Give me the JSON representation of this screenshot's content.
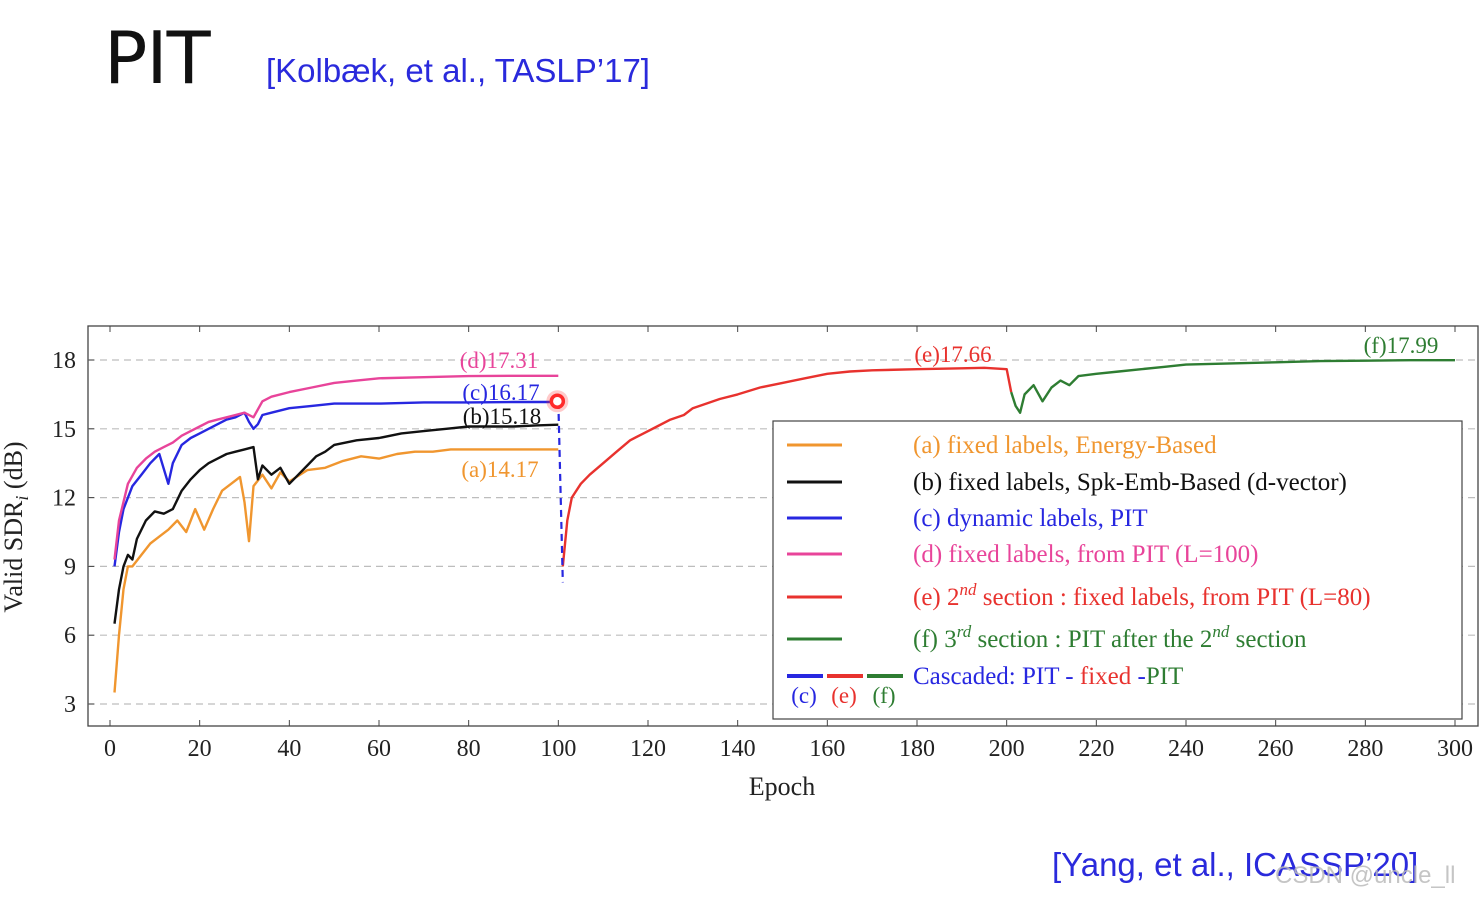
{
  "slide": {
    "title": "PIT",
    "citation_top": "[Kolbæk, et al., TASLP’17]",
    "citation_bottom": "[Yang, et al., ICASSP’20]",
    "watermark": "CSDN @uncle_ll"
  },
  "chart_data": {
    "type": "line",
    "xlabel": "Epoch",
    "ylabel": "Valid SDR",
    "ylabel_subscript": "i",
    "ylabel_unit": "(dB)",
    "xlim": [
      0,
      300
    ],
    "ylim": [
      2,
      19.5
    ],
    "xticks": [
      0,
      20,
      40,
      60,
      80,
      100,
      120,
      140,
      160,
      180,
      200,
      220,
      240,
      260,
      280,
      300
    ],
    "yticks": [
      3,
      6,
      9,
      12,
      15,
      18
    ],
    "grid": "horizontal-dashed",
    "legend_position": "bottom-right",
    "series": [
      {
        "name": "(a) fixed labels, Energy-Based",
        "color": "#f0962f",
        "points": [
          [
            1,
            3.5
          ],
          [
            2,
            6
          ],
          [
            3,
            8
          ],
          [
            4,
            9
          ],
          [
            5,
            9
          ],
          [
            7,
            9.5
          ],
          [
            9,
            10
          ],
          [
            11,
            10.3
          ],
          [
            13,
            10.6
          ],
          [
            15,
            11
          ],
          [
            17,
            10.5
          ],
          [
            19,
            11.5
          ],
          [
            21,
            10.6
          ],
          [
            23,
            11.5
          ],
          [
            25,
            12.3
          ],
          [
            27,
            12.6
          ],
          [
            29,
            12.9
          ],
          [
            30,
            11.8
          ],
          [
            31,
            10.1
          ],
          [
            32,
            12.5
          ],
          [
            34,
            13
          ],
          [
            36,
            12.4
          ],
          [
            38,
            13.1
          ],
          [
            40,
            12.7
          ],
          [
            44,
            13.2
          ],
          [
            48,
            13.3
          ],
          [
            52,
            13.6
          ],
          [
            56,
            13.8
          ],
          [
            60,
            13.7
          ],
          [
            64,
            13.9
          ],
          [
            68,
            14
          ],
          [
            72,
            14
          ],
          [
            76,
            14.1
          ],
          [
            80,
            14.1
          ],
          [
            85,
            14.1
          ],
          [
            90,
            14.1
          ],
          [
            95,
            14.1
          ],
          [
            100,
            14.1
          ]
        ],
        "label": "(a)14.17"
      },
      {
        "name": "(b) fixed labels, Spk-Emb-Based (d-vector)",
        "color": "#111111",
        "points": [
          [
            1,
            6.5
          ],
          [
            2,
            8
          ],
          [
            3,
            9
          ],
          [
            4,
            9.5
          ],
          [
            5,
            9.3
          ],
          [
            6,
            10.2
          ],
          [
            8,
            11
          ],
          [
            10,
            11.4
          ],
          [
            12,
            11.3
          ],
          [
            14,
            11.5
          ],
          [
            16,
            12.3
          ],
          [
            18,
            12.8
          ],
          [
            20,
            13.2
          ],
          [
            22,
            13.5
          ],
          [
            24,
            13.7
          ],
          [
            26,
            13.9
          ],
          [
            28,
            14
          ],
          [
            30,
            14.1
          ],
          [
            32,
            14.2
          ],
          [
            33,
            12.8
          ],
          [
            34,
            13.4
          ],
          [
            36,
            13
          ],
          [
            38,
            13.3
          ],
          [
            40,
            12.6
          ],
          [
            42,
            13
          ],
          [
            44,
            13.4
          ],
          [
            46,
            13.8
          ],
          [
            48,
            14
          ],
          [
            50,
            14.3
          ],
          [
            55,
            14.5
          ],
          [
            60,
            14.6
          ],
          [
            65,
            14.8
          ],
          [
            70,
            14.9
          ],
          [
            75,
            15
          ],
          [
            80,
            15.1
          ],
          [
            85,
            15.1
          ],
          [
            90,
            15.1
          ],
          [
            95,
            15.15
          ],
          [
            100,
            15.18
          ]
        ],
        "label": "(b)15.18"
      },
      {
        "name": "(c) dynamic labels, PIT",
        "color": "#2727e0",
        "points": [
          [
            1,
            9
          ],
          [
            2,
            10.5
          ],
          [
            3,
            11.5
          ],
          [
            5,
            12.5
          ],
          [
            7,
            13
          ],
          [
            9,
            13.5
          ],
          [
            11,
            13.9
          ],
          [
            13,
            12.6
          ],
          [
            14,
            13.5
          ],
          [
            16,
            14.3
          ],
          [
            18,
            14.6
          ],
          [
            20,
            14.8
          ],
          [
            22,
            15
          ],
          [
            24,
            15.2
          ],
          [
            26,
            15.4
          ],
          [
            28,
            15.5
          ],
          [
            30,
            15.7
          ],
          [
            31,
            15.3
          ],
          [
            32,
            15
          ],
          [
            33,
            15.2
          ],
          [
            34,
            15.6
          ],
          [
            36,
            15.7
          ],
          [
            40,
            15.9
          ],
          [
            45,
            16
          ],
          [
            50,
            16.1
          ],
          [
            60,
            16.1
          ],
          [
            70,
            16.15
          ],
          [
            80,
            16.15
          ],
          [
            90,
            16.17
          ],
          [
            100,
            16.17
          ]
        ],
        "label": "(c)16.17"
      },
      {
        "name": "(d) fixed labels, from PIT (L=100)",
        "color": "#e8449a",
        "points": [
          [
            1,
            9.3
          ],
          [
            2,
            11
          ],
          [
            4,
            12.6
          ],
          [
            6,
            13.3
          ],
          [
            8,
            13.7
          ],
          [
            10,
            14
          ],
          [
            12,
            14.2
          ],
          [
            14,
            14.4
          ],
          [
            16,
            14.7
          ],
          [
            18,
            14.9
          ],
          [
            20,
            15.1
          ],
          [
            22,
            15.3
          ],
          [
            24,
            15.4
          ],
          [
            26,
            15.5
          ],
          [
            28,
            15.6
          ],
          [
            30,
            15.7
          ],
          [
            32,
            15.5
          ],
          [
            34,
            16.2
          ],
          [
            36,
            16.4
          ],
          [
            40,
            16.6
          ],
          [
            45,
            16.8
          ],
          [
            50,
            17
          ],
          [
            55,
            17.1
          ],
          [
            60,
            17.2
          ],
          [
            70,
            17.25
          ],
          [
            80,
            17.3
          ],
          [
            90,
            17.31
          ],
          [
            100,
            17.31
          ]
        ],
        "label": "(d)17.31"
      },
      {
        "name": "(e) 2nd section : fixed labels, from PIT (L=80)",
        "color": "#e8322e",
        "points": [
          [
            101,
            9
          ],
          [
            102,
            11
          ],
          [
            103,
            12
          ],
          [
            105,
            12.6
          ],
          [
            107,
            13
          ],
          [
            110,
            13.5
          ],
          [
            113,
            14
          ],
          [
            116,
            14.5
          ],
          [
            119,
            14.8
          ],
          [
            122,
            15.1
          ],
          [
            125,
            15.4
          ],
          [
            128,
            15.6
          ],
          [
            130,
            15.9
          ],
          [
            133,
            16.1
          ],
          [
            136,
            16.3
          ],
          [
            140,
            16.5
          ],
          [
            145,
            16.8
          ],
          [
            150,
            17
          ],
          [
            155,
            17.2
          ],
          [
            160,
            17.4
          ],
          [
            165,
            17.5
          ],
          [
            170,
            17.55
          ],
          [
            180,
            17.6
          ],
          [
            190,
            17.64
          ],
          [
            195,
            17.66
          ],
          [
            200,
            17.6
          ],
          [
            201,
            16.6
          ]
        ],
        "label": "(e)17.66"
      },
      {
        "name": "(f) 3rd section : PIT after the 2nd section",
        "color": "#2e7d32",
        "points": [
          [
            201,
            16.6
          ],
          [
            202,
            16
          ],
          [
            203,
            15.7
          ],
          [
            204,
            16.5
          ],
          [
            206,
            16.9
          ],
          [
            208,
            16.2
          ],
          [
            210,
            16.8
          ],
          [
            212,
            17.1
          ],
          [
            214,
            16.9
          ],
          [
            216,
            17.3
          ],
          [
            220,
            17.4
          ],
          [
            225,
            17.5
          ],
          [
            230,
            17.6
          ],
          [
            235,
            17.7
          ],
          [
            240,
            17.8
          ],
          [
            250,
            17.85
          ],
          [
            260,
            17.9
          ],
          [
            270,
            17.95
          ],
          [
            280,
            17.97
          ],
          [
            290,
            17.99
          ],
          [
            300,
            17.99
          ]
        ],
        "label": "(f)17.99"
      }
    ],
    "transition": {
      "from": [
        100,
        16.17
      ],
      "to": [
        101,
        8.3
      ],
      "style": "dashed",
      "color": "#2727e0"
    },
    "marker": {
      "x": 100,
      "y": 16.2,
      "color": "#ff2a2a"
    },
    "legend": [
      {
        "key": "a",
        "text": "(a) fixed labels, Energy-Based",
        "color": "#f0962f"
      },
      {
        "key": "b",
        "text": "(b) fixed labels, Spk-Emb-Based (d-vector)",
        "color": "#111111"
      },
      {
        "key": "c",
        "text": "(c) dynamic labels, PIT",
        "color": "#2727e0"
      },
      {
        "key": "d",
        "text": "(d) fixed labels, from PIT (L=100)",
        "color": "#e8449a"
      },
      {
        "key": "e",
        "text_pre": "(e) 2",
        "text_sup": "nd",
        "text_post": " section : fixed labels, from PIT (L=80)",
        "color": "#e8322e"
      },
      {
        "key": "f",
        "text_pre": "(f) 3",
        "text_sup": "rd",
        "text_mid": " section : PIT after the 2",
        "text_sup2": "nd",
        "text_post": " section",
        "color": "#2e7d32"
      }
    ],
    "cascaded": {
      "label_prefix": "Cascaded: ",
      "parts": [
        {
          "text": "PIT",
          "color": "#2727e0"
        },
        {
          "text": " - ",
          "color": "#2727e0"
        },
        {
          "text": "fixed",
          "color": "#e8322e"
        },
        {
          "text": " -",
          "color": "#2727e0"
        },
        {
          "text": "PIT",
          "color": "#2e7d32"
        }
      ],
      "sublabels": [
        {
          "text": "(c)",
          "color": "#2727e0"
        },
        {
          "text": "(e)",
          "color": "#e8322e"
        },
        {
          "text": "(f)",
          "color": "#2e7d32"
        }
      ]
    }
  }
}
